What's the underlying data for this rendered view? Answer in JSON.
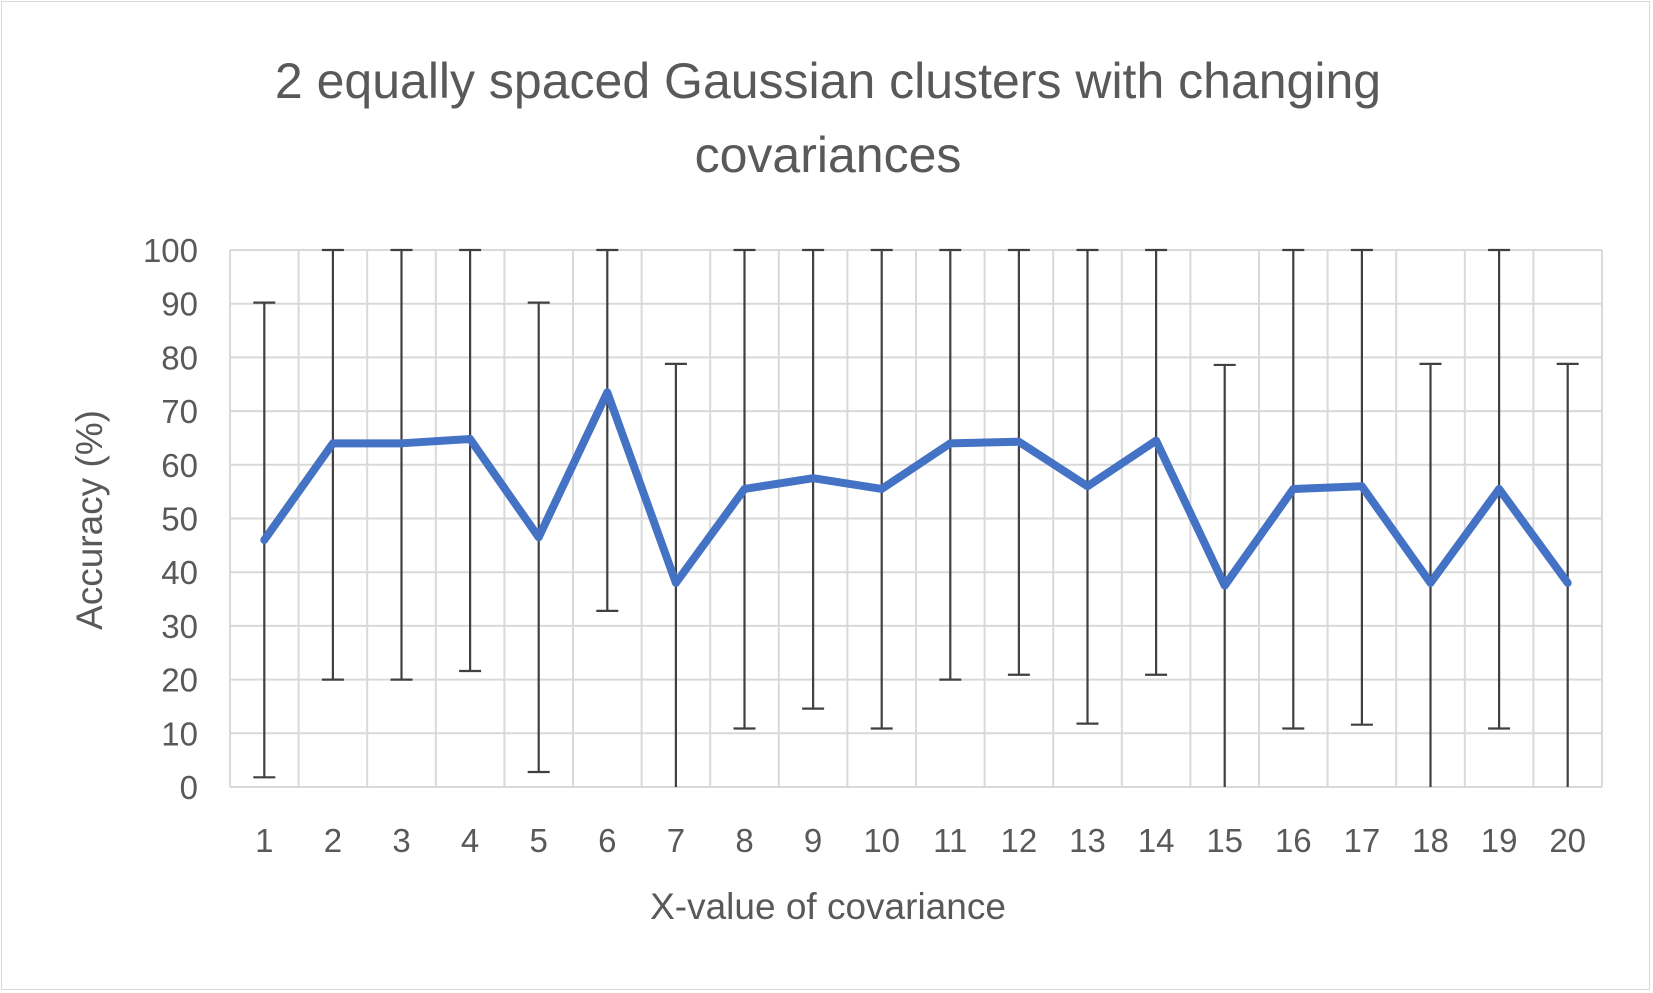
{
  "chart_data": {
    "type": "line",
    "title_lines": [
      "2 equally spaced Gaussian clusters with changing",
      "covariances"
    ],
    "xlabel": "X-value of covariance",
    "ylabel": "Accuracy (%)",
    "categories": [
      "1",
      "2",
      "3",
      "4",
      "5",
      "6",
      "7",
      "8",
      "9",
      "10",
      "11",
      "12",
      "13",
      "14",
      "15",
      "16",
      "17",
      "18",
      "19",
      "20"
    ],
    "ylim": [
      0,
      100
    ],
    "yticks": [
      0,
      10,
      20,
      30,
      40,
      50,
      60,
      70,
      80,
      90,
      100
    ],
    "grid": true,
    "legend": "none",
    "series": [
      {
        "values": [
          46,
          64,
          64,
          64.8,
          46.5,
          73.5,
          38,
          55.5,
          57.5,
          55.5,
          64,
          64.3,
          56,
          64.5,
          37.5,
          55.5,
          56,
          38,
          55.5,
          38
        ],
        "error_high": [
          90.2,
          100,
          100,
          100,
          90.2,
          100,
          78.8,
          100,
          100,
          100,
          100,
          100,
          100,
          100,
          78.6,
          100,
          100,
          78.8,
          100,
          78.8
        ],
        "error_low": [
          1.8,
          20,
          20,
          21.6,
          2.8,
          32.8,
          0,
          10.9,
          14.6,
          10.9,
          20,
          20.9,
          11.8,
          20.9,
          0,
          10.9,
          11.6,
          0,
          10.9,
          0
        ],
        "color": "#4472c4"
      }
    ],
    "colors": {
      "line": "#4472c4",
      "error_bar": "#404040",
      "grid": "#d9d9d9",
      "text": "#595959",
      "frame": "#d9d9d9"
    }
  }
}
